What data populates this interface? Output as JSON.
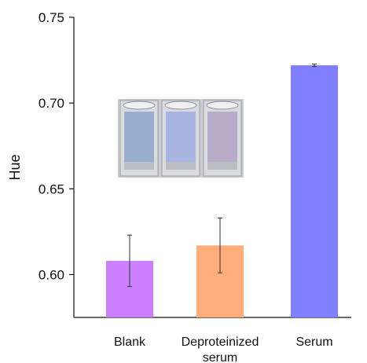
{
  "chart_data": {
    "type": "bar",
    "ylabel": "Hue",
    "ylim": [
      0.575,
      0.75
    ],
    "yticks": [
      "0.60",
      "0.65",
      "0.70",
      "0.75"
    ],
    "ytick_values": [
      0.6,
      0.65,
      0.7,
      0.75
    ],
    "categories": [
      {
        "lines": [
          "Blank"
        ]
      },
      {
        "lines": [
          "Deproteinized",
          "serum"
        ]
      },
      {
        "lines": [
          "Serum"
        ]
      }
    ],
    "values": [
      0.608,
      0.617,
      0.722
    ],
    "errors": [
      0.015,
      0.016,
      0.0007
    ],
    "colors": [
      "#cc80ff",
      "#ffad7a",
      "#7f7fff"
    ],
    "grid": false,
    "inset": {
      "description": "photo of three cuvettes",
      "tints": [
        "#8da6c9",
        "#9eaee0",
        "#b3a3c4"
      ]
    }
  }
}
